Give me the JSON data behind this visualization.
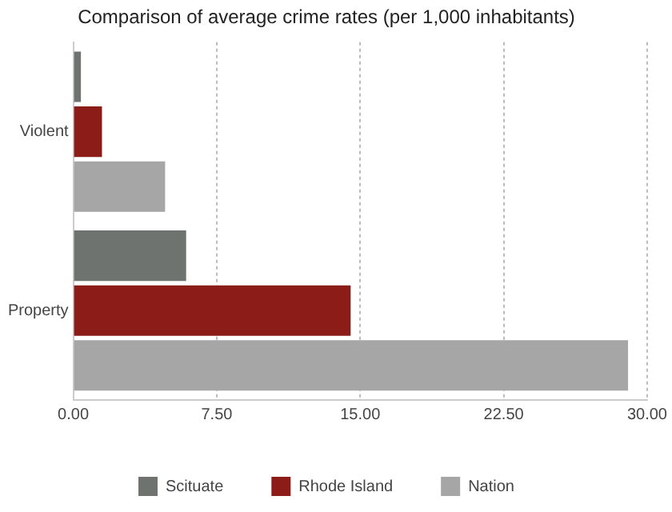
{
  "chart_data": {
    "type": "bar",
    "orientation": "horizontal",
    "title": "Comparison of average crime rates (per 1,000 inhabitants)",
    "categories": [
      "Violent",
      "Property"
    ],
    "series": [
      {
        "name": "Scituate",
        "color": "#6e7370",
        "values": [
          0.4,
          5.9
        ]
      },
      {
        "name": "Rhode Island",
        "color": "#8b1c17",
        "values": [
          1.5,
          14.5
        ]
      },
      {
        "name": "Nation",
        "color": "#a6a6a6",
        "values": [
          4.8,
          29
        ]
      }
    ],
    "xlim": [
      0,
      30
    ],
    "xticks": [
      {
        "value": 0,
        "label": "0.00"
      },
      {
        "value": 7.5,
        "label": "7.50"
      },
      {
        "value": 15,
        "label": "15.00"
      },
      {
        "value": 22.5,
        "label": "22.50"
      },
      {
        "value": 30,
        "label": "30.00"
      }
    ],
    "grid": "x",
    "legend": "bottom"
  }
}
